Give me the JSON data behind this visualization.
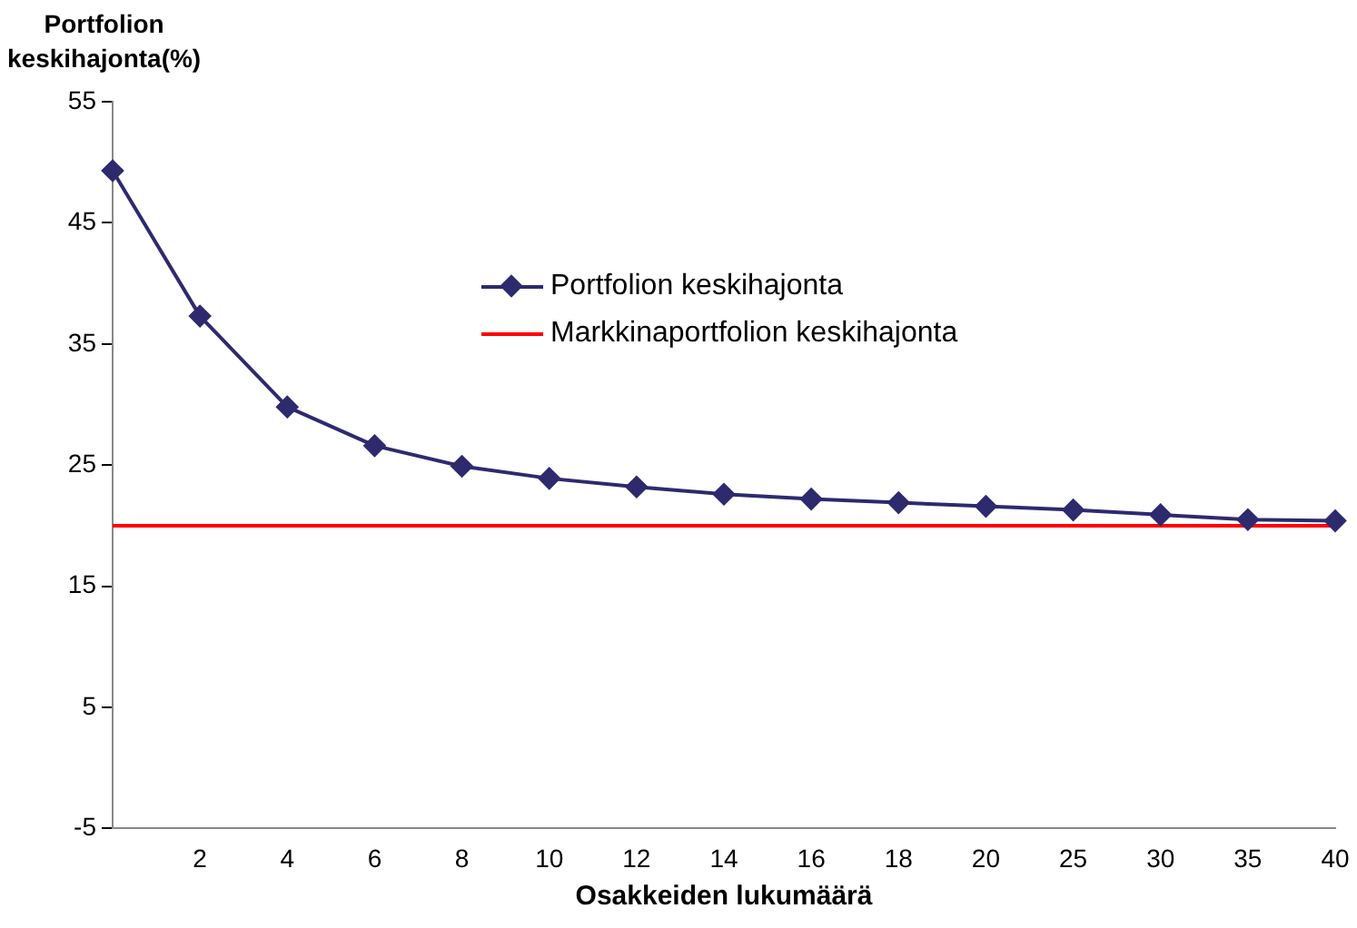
{
  "chart_data": {
    "type": "line",
    "ylabel": "Portfolion keskihajonta(%)",
    "xlabel": "Osakkeiden lukumäärä",
    "categories": [
      null,
      "2",
      "4",
      "6",
      "8",
      "10",
      "12",
      "14",
      "16",
      "18",
      "20",
      "25",
      "30",
      "35",
      "40"
    ],
    "series": [
      {
        "name": "Portfolion keskihajonta",
        "color": "#2e2a6e",
        "marker": "diamond",
        "values": [
          49.3,
          37.3,
          29.8,
          26.6,
          24.9,
          23.9,
          23.2,
          22.6,
          22.2,
          21.9,
          21.6,
          21.3,
          20.9,
          20.5,
          20.4
        ]
      },
      {
        "name": "Markkinaportfolion keskihajonta",
        "color": "#ff0000",
        "marker": "none",
        "values": [
          20,
          20,
          20,
          20,
          20,
          20,
          20,
          20,
          20,
          20,
          20,
          20,
          20,
          20,
          20
        ]
      }
    ],
    "ylim": [
      -5,
      55
    ],
    "yticks": [
      -5,
      5,
      15,
      25,
      35,
      45,
      55
    ],
    "grid": false,
    "legend": "top"
  }
}
